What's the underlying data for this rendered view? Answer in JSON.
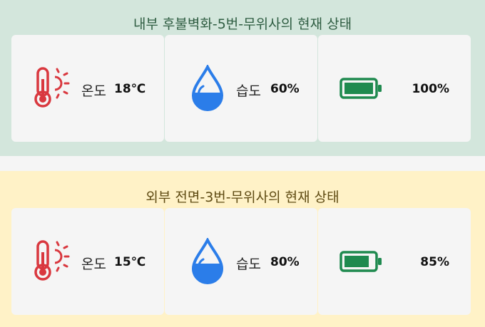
{
  "panels": [
    {
      "title": "내부 후불벽화-5번-무위사의 현재 상태",
      "temperature": {
        "label": "온도",
        "value": "18℃"
      },
      "humidity": {
        "label": "습도",
        "value": "60%",
        "level": 0.6
      },
      "battery": {
        "value": "100%",
        "level": 1.0
      }
    },
    {
      "title": "외부 전면-3번-무위사의 현재 상태",
      "temperature": {
        "label": "온도",
        "value": "15℃"
      },
      "humidity": {
        "label": "습도",
        "value": "80%",
        "level": 0.8
      },
      "battery": {
        "value": "85%",
        "level": 0.85
      }
    }
  ],
  "colors": {
    "inner_bg": "#d3e6dc",
    "outer_bg": "#fff2c7",
    "card_bg": "#f5f5f5",
    "thermometer": "#d9383f",
    "water": "#2b7de9",
    "battery": "#1f8a4f"
  },
  "icons": [
    "thermometer-sun-icon",
    "water-drop-icon",
    "battery-icon"
  ]
}
